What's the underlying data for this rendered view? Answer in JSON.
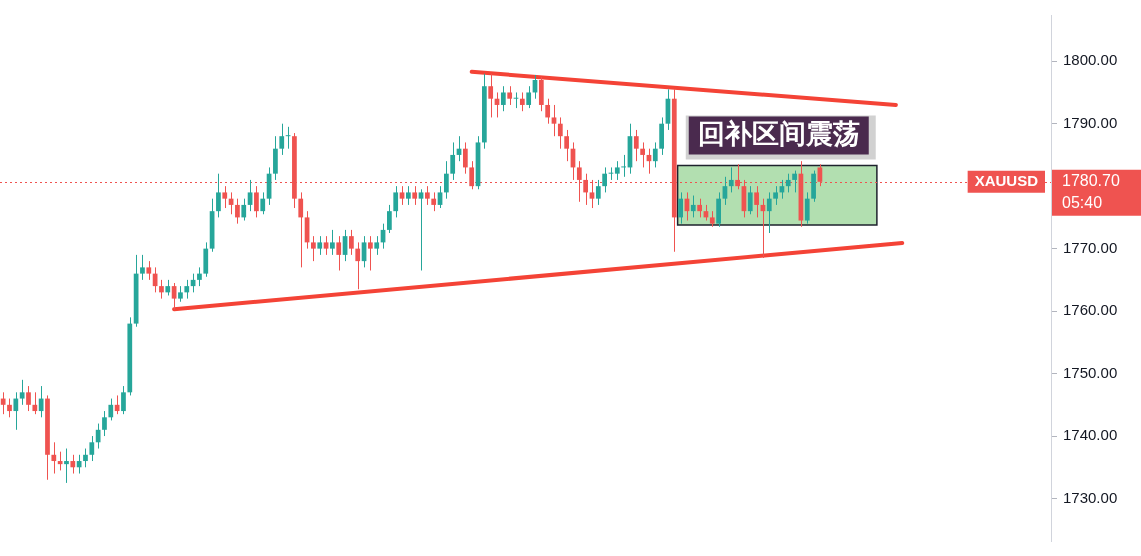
{
  "chart_data": {
    "type": "candlestick",
    "categories": [
      null,
      null,
      null,
      null,
      null,
      null,
      null,
      null,
      null,
      null,
      null,
      null,
      null,
      null,
      null,
      null,
      null,
      null,
      null,
      null,
      null,
      null,
      null,
      null,
      null,
      null,
      null,
      null,
      null,
      null,
      null,
      null,
      null,
      null,
      null,
      null,
      null,
      null,
      null,
      null,
      null,
      null,
      null,
      null,
      null,
      null,
      null,
      null,
      null,
      null,
      null,
      null,
      null,
      null,
      null,
      null,
      null,
      null,
      null,
      null,
      null,
      null,
      null,
      null,
      null,
      null,
      null,
      null,
      null,
      null,
      null,
      null,
      null,
      null,
      null,
      null,
      null,
      null,
      null,
      null,
      null,
      null,
      null,
      null,
      null,
      null,
      null,
      null,
      null,
      null,
      null,
      null,
      null,
      null,
      null,
      null,
      null,
      null,
      null,
      null,
      null,
      null,
      null,
      null,
      null,
      null,
      null,
      null,
      null,
      null,
      null,
      null,
      null,
      null,
      null,
      null,
      null,
      null,
      null,
      null,
      null,
      null,
      null,
      null,
      null,
      null,
      null,
      null,
      null,
      null,
      null,
      null,
      null,
      null,
      null,
      null,
      null,
      null,
      null,
      null,
      null,
      null,
      null,
      null,
      null,
      null,
      null,
      null,
      null,
      null,
      null,
      null,
      null,
      null,
      null,
      null,
      null,
      null,
      null,
      null,
      null,
      null,
      null,
      null,
      null,
      null
    ],
    "ohlc": [
      [
        1746,
        1747,
        1743.5,
        1745
      ],
      [
        1745,
        1746,
        1743,
        1744
      ],
      [
        1744,
        1747,
        1741,
        1746
      ],
      [
        1746,
        1749,
        1745,
        1747
      ],
      [
        1747,
        1748,
        1744,
        1745
      ],
      [
        1745,
        1747,
        1743.5,
        1744
      ],
      [
        1744,
        1748,
        1743,
        1746
      ],
      [
        1746,
        1746.5,
        1733,
        1737
      ],
      [
        1737,
        1739,
        1734,
        1736
      ],
      [
        1736,
        1737.5,
        1734.5,
        1735.5
      ],
      [
        1735.5,
        1738,
        1732.5,
        1736
      ],
      [
        1736,
        1737,
        1734,
        1735
      ],
      [
        1735,
        1737,
        1734,
        1736
      ],
      [
        1736,
        1738,
        1735,
        1737
      ],
      [
        1737,
        1740,
        1736,
        1739
      ],
      [
        1739,
        1742,
        1738,
        1741
      ],
      [
        1741,
        1744,
        1740,
        1743
      ],
      [
        1743,
        1746,
        1742.5,
        1745
      ],
      [
        1745,
        1746.5,
        1743.5,
        1744
      ],
      [
        1744,
        1748,
        1743.5,
        1747
      ],
      [
        1747,
        1759,
        1746.5,
        1758
      ],
      [
        1758,
        1769,
        1757.5,
        1766
      ],
      [
        1766,
        1769,
        1765,
        1767
      ],
      [
        1767,
        1768,
        1765,
        1766
      ],
      [
        1766,
        1767,
        1763,
        1764
      ],
      [
        1764,
        1765,
        1762,
        1763
      ],
      [
        1763,
        1765,
        1762.5,
        1764
      ],
      [
        1764,
        1764.5,
        1760.2,
        1762
      ],
      [
        1762,
        1764,
        1761.5,
        1763
      ],
      [
        1763,
        1765,
        1762,
        1764
      ],
      [
        1764,
        1766,
        1763,
        1765
      ],
      [
        1765,
        1767,
        1764,
        1766
      ],
      [
        1766,
        1771,
        1765.5,
        1770
      ],
      [
        1770,
        1778,
        1769.5,
        1776
      ],
      [
        1776,
        1782,
        1775,
        1779
      ],
      [
        1779,
        1780,
        1776.5,
        1778
      ],
      [
        1778,
        1779,
        1775.5,
        1777
      ],
      [
        1777,
        1778,
        1774,
        1775
      ],
      [
        1775,
        1778,
        1774.5,
        1777
      ],
      [
        1777,
        1781,
        1776,
        1779
      ],
      [
        1779,
        1780,
        1775,
        1776
      ],
      [
        1776,
        1779,
        1775.5,
        1778
      ],
      [
        1778,
        1783,
        1777,
        1782
      ],
      [
        1782,
        1788,
        1781,
        1786
      ],
      [
        1786,
        1790,
        1785,
        1788
      ],
      [
        1788,
        1789.5,
        1786,
        1788
      ],
      [
        1788,
        1788.5,
        1776.5,
        1778
      ],
      [
        1778,
        1779,
        1767,
        1775
      ],
      [
        1775,
        1776,
        1770,
        1771
      ],
      [
        1771,
        1772,
        1768,
        1770
      ],
      [
        1770,
        1772,
        1769,
        1771
      ],
      [
        1771,
        1772,
        1769,
        1770
      ],
      [
        1770,
        1773,
        1769,
        1771
      ],
      [
        1771,
        1772,
        1766.5,
        1769
      ],
      [
        1769,
        1773,
        1768,
        1772
      ],
      [
        1772,
        1773,
        1769,
        1770
      ],
      [
        1770,
        1771,
        1763.5,
        1768
      ],
      [
        1768,
        1772,
        1767,
        1771
      ],
      [
        1771,
        1772,
        1766.5,
        1770
      ],
      [
        1770,
        1772,
        1769,
        1771
      ],
      [
        1771,
        1774,
        1770,
        1773
      ],
      [
        1773,
        1777,
        1772.5,
        1776
      ],
      [
        1776,
        1780,
        1775,
        1779
      ],
      [
        1779,
        1780,
        1777,
        1778
      ],
      [
        1778,
        1780,
        1777,
        1779
      ],
      [
        1779,
        1780,
        1777,
        1778
      ],
      [
        1778,
        1779.5,
        1766.5,
        1779
      ],
      [
        1779,
        1780,
        1777,
        1778
      ],
      [
        1778,
        1779,
        1776,
        1777
      ],
      [
        1777,
        1780,
        1776.5,
        1779
      ],
      [
        1779,
        1784,
        1778,
        1782
      ],
      [
        1782,
        1787,
        1781,
        1785
      ],
      [
        1785,
        1788,
        1784,
        1786
      ],
      [
        1786,
        1787,
        1782,
        1783
      ],
      [
        1783,
        1784,
        1779.5,
        1780
      ],
      [
        1780,
        1788,
        1779.5,
        1787
      ],
      [
        1787,
        1798,
        1786,
        1796
      ],
      [
        1796,
        1798,
        1791,
        1794
      ],
      [
        1794,
        1795,
        1791,
        1793
      ],
      [
        1793,
        1796,
        1792,
        1795
      ],
      [
        1795,
        1796,
        1793,
        1794
      ],
      [
        1794,
        1795,
        1792.5,
        1794
      ],
      [
        1794,
        1795,
        1792,
        1793
      ],
      [
        1793,
        1796,
        1792.5,
        1795
      ],
      [
        1795,
        1797.8,
        1794,
        1797
      ],
      [
        1797,
        1797.5,
        1792,
        1793
      ],
      [
        1793,
        1794,
        1790,
        1791
      ],
      [
        1791,
        1793,
        1788,
        1790
      ],
      [
        1790,
        1791,
        1786,
        1788
      ],
      [
        1788,
        1789,
        1784,
        1786
      ],
      [
        1786,
        1787,
        1781,
        1783
      ],
      [
        1783,
        1784,
        1777.5,
        1781
      ],
      [
        1781,
        1782,
        1777,
        1779
      ],
      [
        1779,
        1781,
        1776.5,
        1778
      ],
      [
        1778,
        1781,
        1777,
        1780
      ],
      [
        1780,
        1783,
        1779,
        1782
      ],
      [
        1782,
        1783,
        1781,
        1782
      ],
      [
        1782,
        1784,
        1781,
        1783
      ],
      [
        1783,
        1785,
        1781.5,
        1783
      ],
      [
        1783,
        1790,
        1782,
        1788
      ],
      [
        1788,
        1789,
        1784,
        1786
      ],
      [
        1786,
        1787,
        1783,
        1785
      ],
      [
        1785,
        1786,
        1782,
        1784
      ],
      [
        1784,
        1787,
        1783,
        1786
      ],
      [
        1786,
        1791,
        1785,
        1790
      ],
      [
        1790,
        1795.5,
        1789,
        1794
      ],
      [
        1794,
        1795.5,
        1769.5,
        1775
      ],
      [
        1775,
        1779,
        1774,
        1778
      ],
      [
        1778,
        1779,
        1774.5,
        1776
      ],
      [
        1776,
        1778.5,
        1775,
        1777
      ],
      [
        1777,
        1778,
        1775,
        1776
      ],
      [
        1776,
        1777,
        1774.5,
        1775
      ],
      [
        1775,
        1776,
        1773.5,
        1774
      ],
      [
        1774,
        1779,
        1773.5,
        1778
      ],
      [
        1778,
        1781.5,
        1777,
        1780
      ],
      [
        1780,
        1783,
        1779,
        1781
      ],
      [
        1781,
        1783.5,
        1779.5,
        1780
      ],
      [
        1780,
        1781,
        1775,
        1776
      ],
      [
        1776,
        1780,
        1775.5,
        1779
      ],
      [
        1779,
        1780,
        1775,
        1777
      ],
      [
        1777,
        1778,
        1768.5,
        1776
      ],
      [
        1776,
        1779,
        1772.5,
        1778
      ],
      [
        1778,
        1780,
        1777,
        1779
      ],
      [
        1779,
        1781,
        1778,
        1780
      ],
      [
        1780,
        1782,
        1779,
        1781
      ],
      [
        1781,
        1782.5,
        1779,
        1782
      ],
      [
        1782,
        1784,
        1773.5,
        1774.5
      ],
      [
        1774.5,
        1779,
        1774,
        1778
      ],
      [
        1778,
        1782.5,
        1777.5,
        1782
      ],
      [
        1783,
        1783.5,
        1780,
        1780.7
      ],
      null,
      null,
      null,
      null,
      null,
      null,
      null,
      null,
      null,
      null,
      null,
      null,
      null,
      null,
      null,
      null,
      null,
      null,
      null,
      null,
      null,
      null,
      null,
      null,
      null,
      null,
      null,
      null,
      null,
      null,
      null,
      null,
      null,
      null,
      null,
      null
    ],
    "series": [
      {
        "type": "line",
        "color": "#f44336",
        "values": [
          null,
          null,
          null,
          null,
          null,
          null,
          null,
          null,
          null,
          null,
          null,
          null,
          null,
          null,
          null,
          null,
          null,
          null,
          null,
          null,
          null,
          null,
          null,
          null,
          null,
          null,
          null,
          null,
          null,
          null,
          null,
          null,
          null,
          null,
          null,
          null,
          null,
          null,
          null,
          null,
          null,
          null,
          null,
          null,
          null,
          null,
          null,
          null,
          null,
          null,
          null,
          null,
          null,
          null,
          null,
          null,
          null,
          null,
          null,
          null,
          null,
          null,
          null,
          null,
          null,
          null,
          null,
          null,
          null,
          null,
          null,
          null,
          null,
          null,
          1798.3,
          null,
          null,
          null,
          null,
          null,
          null,
          null,
          null,
          null,
          null,
          null,
          null,
          null,
          null,
          null,
          null,
          null,
          null,
          null,
          null,
          null,
          null,
          null,
          null,
          null,
          null,
          null,
          null,
          null,
          null,
          null,
          null,
          null,
          null,
          null,
          null,
          null,
          null,
          null,
          null,
          null,
          null,
          null,
          null,
          null,
          null,
          null,
          null,
          null,
          null,
          null,
          null,
          null,
          null,
          null,
          null,
          null,
          null,
          null,
          null,
          null,
          null,
          null,
          null,
          null,
          null,
          1793,
          null,
          null,
          null,
          null,
          null,
          null,
          null,
          null,
          null,
          null,
          null,
          null,
          null,
          null,
          null,
          null,
          null,
          null,
          null,
          null,
          null,
          null,
          null,
          null
        ]
      },
      {
        "type": "line",
        "color": "#f44336",
        "values": [
          null,
          null,
          null,
          null,
          null,
          null,
          null,
          null,
          null,
          null,
          null,
          null,
          null,
          null,
          null,
          null,
          null,
          null,
          null,
          null,
          null,
          null,
          null,
          null,
          null,
          null,
          null,
          1760.3,
          null,
          null,
          null,
          null,
          null,
          null,
          null,
          null,
          null,
          null,
          null,
          null,
          null,
          null,
          null,
          null,
          null,
          null,
          null,
          null,
          null,
          null,
          null,
          null,
          null,
          null,
          null,
          null,
          null,
          null,
          null,
          null,
          null,
          null,
          null,
          null,
          null,
          null,
          null,
          null,
          null,
          null,
          null,
          null,
          null,
          null,
          null,
          null,
          null,
          null,
          null,
          null,
          null,
          null,
          null,
          null,
          null,
          null,
          null,
          null,
          null,
          null,
          null,
          null,
          null,
          null,
          null,
          null,
          null,
          null,
          null,
          null,
          null,
          null,
          null,
          null,
          null,
          null,
          null,
          null,
          null,
          null,
          null,
          null,
          null,
          null,
          null,
          null,
          null,
          null,
          null,
          null,
          null,
          null,
          null,
          null,
          null,
          null,
          null,
          null,
          null,
          null,
          null,
          null,
          null,
          null,
          null,
          null,
          null,
          null,
          null,
          null,
          null,
          null,
          1770.9,
          null,
          null,
          null,
          null,
          null,
          null,
          null,
          null,
          null,
          null,
          null,
          null,
          null,
          null,
          null,
          null,
          null,
          null,
          null,
          null,
          null,
          null,
          null
        ]
      }
    ],
    "ylim": [
      1723.2,
      1807.4
    ],
    "yticks": [
      {
        "value": 1730,
        "label": "1730.00"
      },
      {
        "value": 1740,
        "label": "1740.00"
      },
      {
        "value": 1750,
        "label": "1750.00"
      },
      {
        "value": 1760,
        "label": "1760.00"
      },
      {
        "value": 1770,
        "label": "1770.00"
      },
      {
        "value": 1790,
        "label": "1790.00"
      },
      {
        "value": 1800,
        "label": "1800.00"
      }
    ],
    "tick_labels": "y",
    "ref_lines": [
      {
        "axis": "y",
        "value": 1780.7,
        "label": "XAUUSD",
        "color": "#ef5350",
        "line_style": "dotted"
      }
    ],
    "bands": [
      {
        "axis": "y",
        "from": 1773.8,
        "to": 1783.3,
        "color": "#b2dfb0"
      }
    ],
    "annotations": [
      "回补区间震荡",
      "1780.70",
      "05:40"
    ]
  }
}
